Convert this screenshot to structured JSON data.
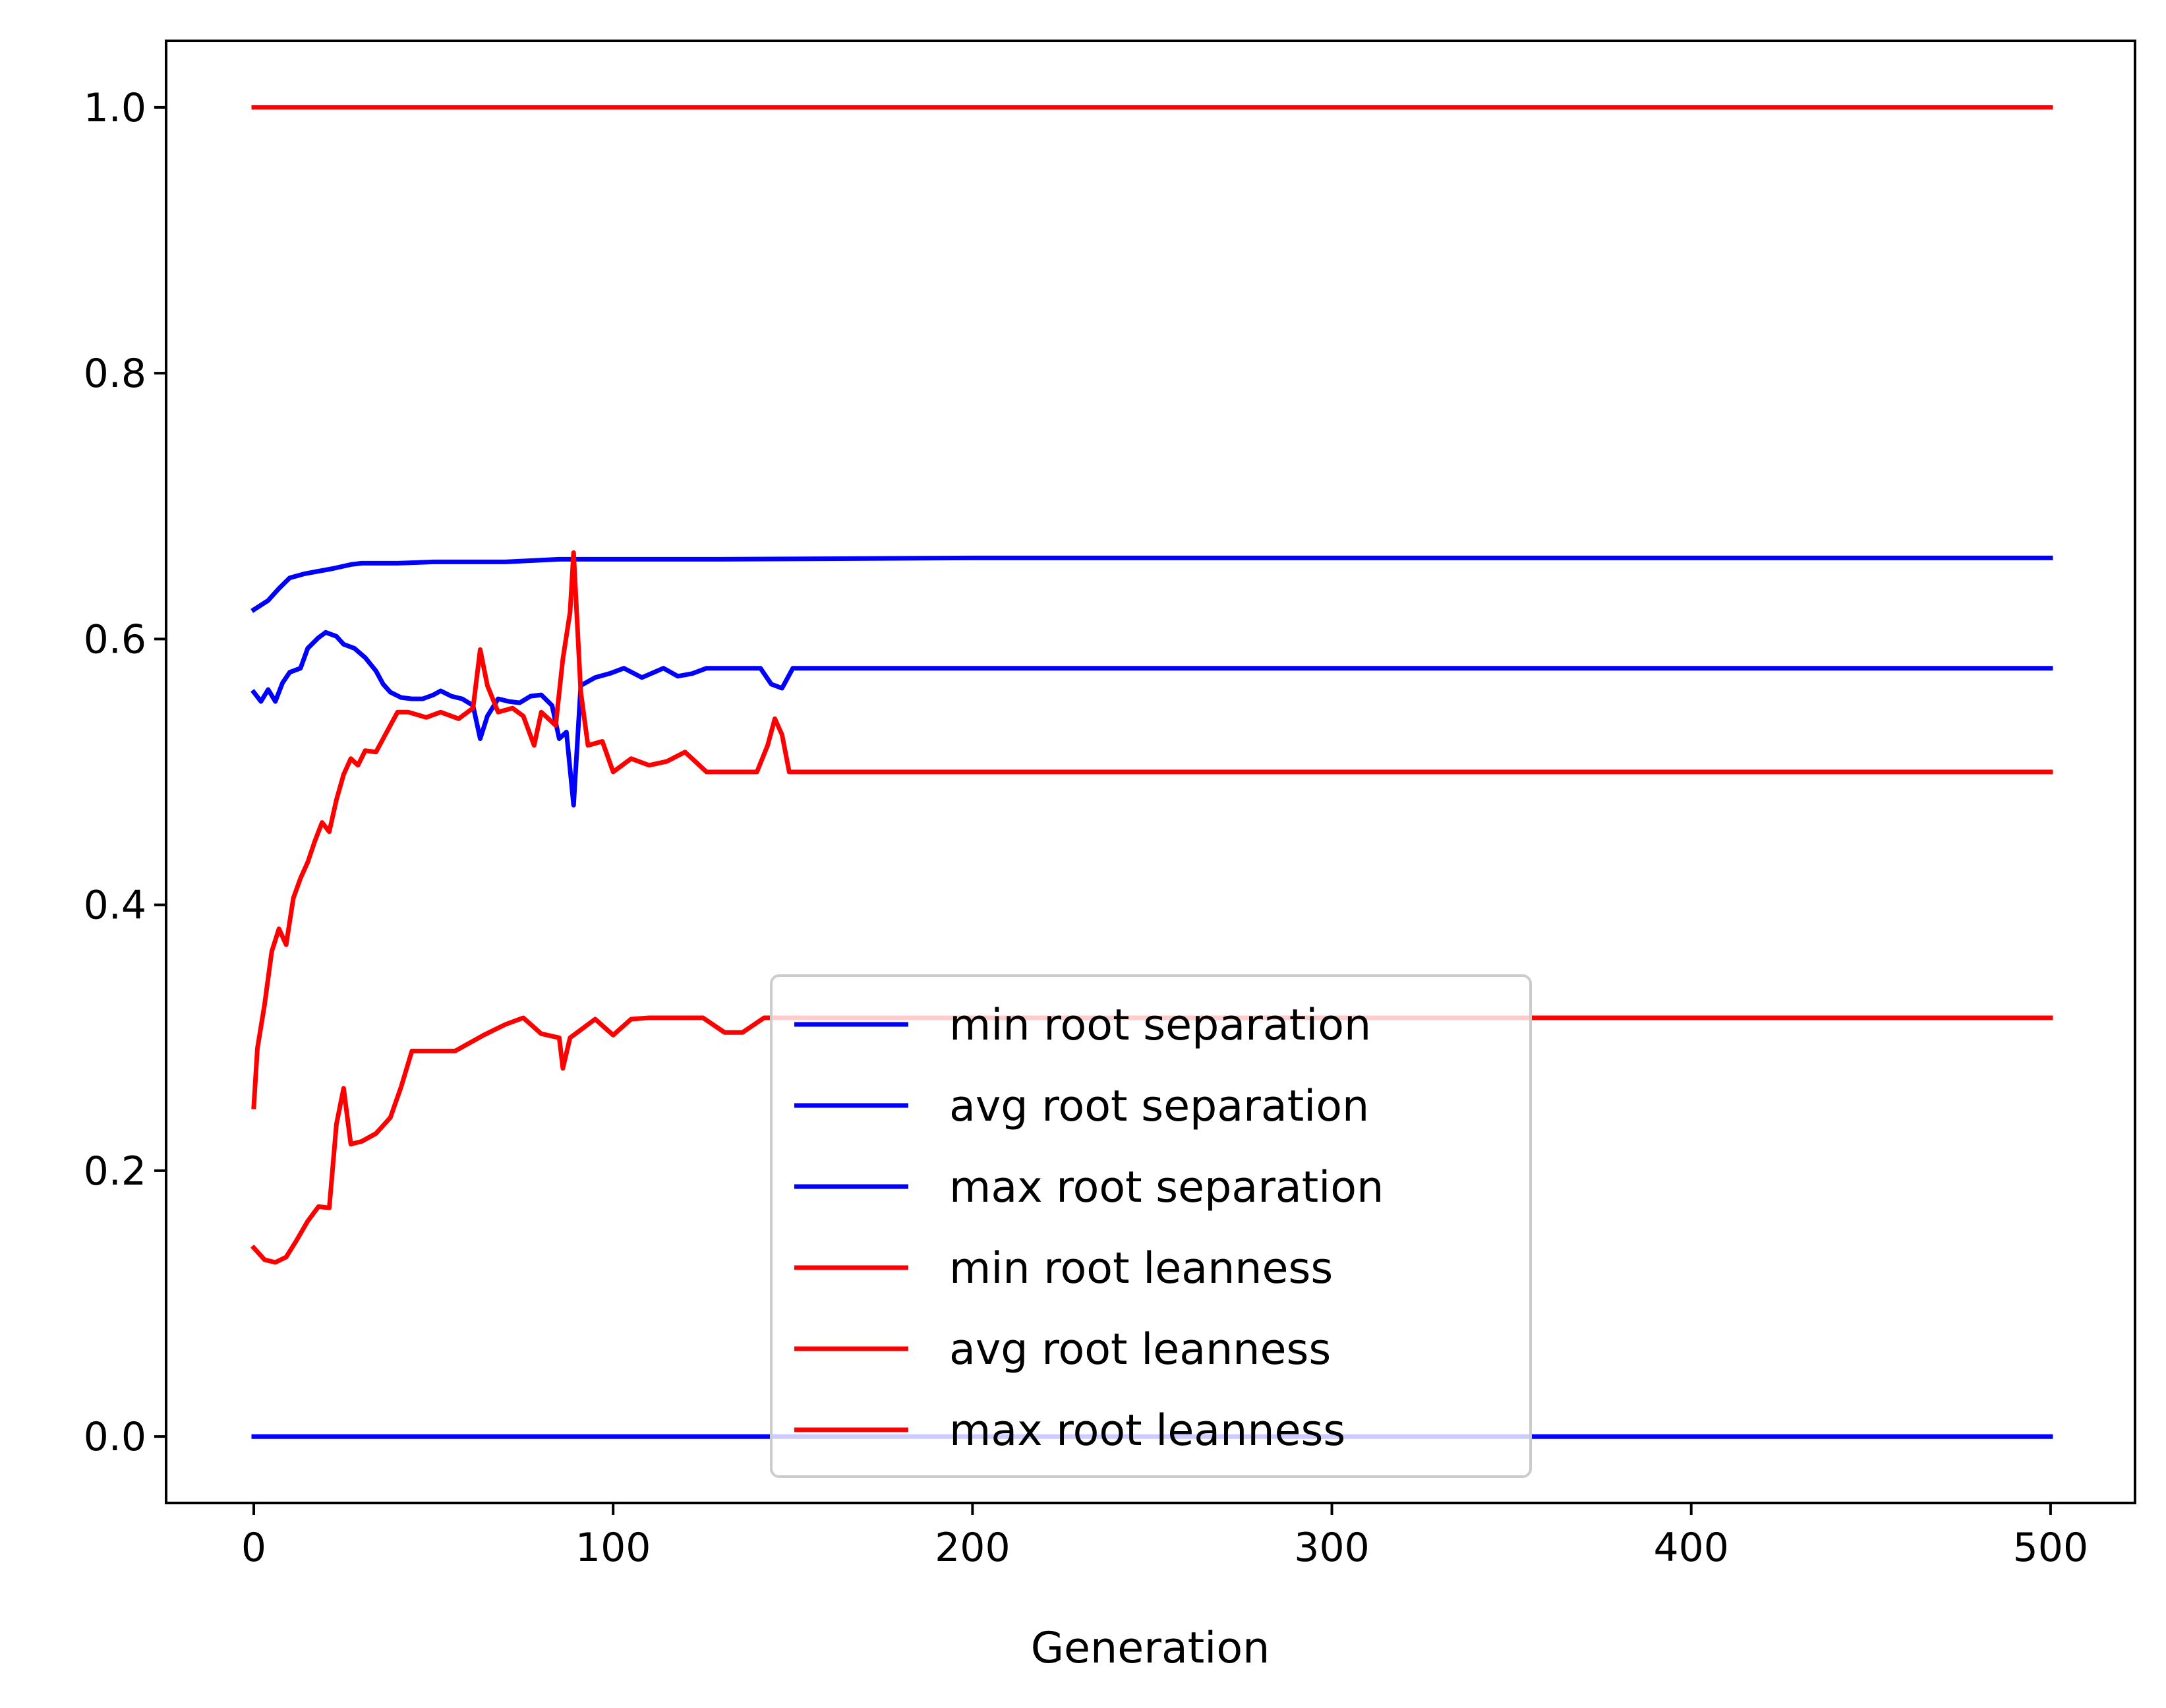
{
  "chart_data": {
    "type": "line",
    "title": "",
    "xlabel": "Generation",
    "ylabel": "",
    "xlim": [
      -24.4,
      523.5
    ],
    "ylim": [
      -0.05,
      1.05
    ],
    "xticks": [
      0,
      100,
      200,
      300,
      400,
      500
    ],
    "yticks": [
      0.0,
      0.2,
      0.4,
      0.6,
      0.8,
      1.0
    ],
    "xtick_labels": [
      "0",
      "100",
      "200",
      "300",
      "400",
      "500"
    ],
    "ytick_labels": [
      "0.0",
      "0.2",
      "0.4",
      "0.6",
      "0.8",
      "1.0"
    ],
    "grid": false,
    "legend_position": "lower center",
    "series": [
      {
        "name": "min root separation",
        "color": "#0000ff",
        "points": [
          [
            0,
            0.0
          ],
          [
            500,
            0.0
          ]
        ]
      },
      {
        "name": "avg root separation",
        "color": "#0000ff",
        "points": [
          [
            0,
            0.56
          ],
          [
            2,
            0.553
          ],
          [
            4,
            0.562
          ],
          [
            6,
            0.553
          ],
          [
            8,
            0.567
          ],
          [
            10,
            0.575
          ],
          [
            13,
            0.578
          ],
          [
            15,
            0.593
          ],
          [
            18,
            0.601
          ],
          [
            20,
            0.605
          ],
          [
            23,
            0.602
          ],
          [
            25,
            0.596
          ],
          [
            28,
            0.593
          ],
          [
            31,
            0.586
          ],
          [
            34,
            0.576
          ],
          [
            36,
            0.566
          ],
          [
            38,
            0.56
          ],
          [
            41,
            0.556
          ],
          [
            44,
            0.555
          ],
          [
            47,
            0.555
          ],
          [
            50,
            0.558
          ],
          [
            52,
            0.561
          ],
          [
            55,
            0.557
          ],
          [
            58,
            0.555
          ],
          [
            61,
            0.55
          ],
          [
            63,
            0.525
          ],
          [
            65,
            0.542
          ],
          [
            68,
            0.555
          ],
          [
            71,
            0.553
          ],
          [
            74,
            0.552
          ],
          [
            77,
            0.557
          ],
          [
            80,
            0.558
          ],
          [
            83,
            0.55
          ],
          [
            85,
            0.525
          ],
          [
            87,
            0.53
          ],
          [
            89,
            0.475
          ],
          [
            91,
            0.565
          ],
          [
            95,
            0.571
          ],
          [
            99,
            0.574
          ],
          [
            103,
            0.578
          ],
          [
            108,
            0.571
          ],
          [
            114,
            0.578
          ],
          [
            118,
            0.572
          ],
          [
            122,
            0.574
          ],
          [
            126,
            0.578
          ],
          [
            130,
            0.578
          ],
          [
            136,
            0.578
          ],
          [
            141,
            0.578
          ],
          [
            144,
            0.566
          ],
          [
            147,
            0.563
          ],
          [
            150,
            0.578
          ],
          [
            500,
            0.578
          ]
        ]
      },
      {
        "name": "max root separation",
        "color": "#0000ff",
        "points": [
          [
            0,
            0.622
          ],
          [
            4,
            0.629
          ],
          [
            7,
            0.638
          ],
          [
            10,
            0.646
          ],
          [
            14,
            0.649
          ],
          [
            18,
            0.651
          ],
          [
            22,
            0.653
          ],
          [
            27,
            0.656
          ],
          [
            30,
            0.657
          ],
          [
            40,
            0.657
          ],
          [
            50,
            0.658
          ],
          [
            70,
            0.658
          ],
          [
            85,
            0.66
          ],
          [
            100,
            0.66
          ],
          [
            130,
            0.66
          ],
          [
            200,
            0.661
          ],
          [
            500,
            0.661
          ]
        ]
      },
      {
        "name": "min root leanness",
        "color": "#ff0000",
        "points": [
          [
            0,
            0.142
          ],
          [
            3,
            0.133
          ],
          [
            6,
            0.131
          ],
          [
            9,
            0.135
          ],
          [
            12,
            0.148
          ],
          [
            15,
            0.162
          ],
          [
            18,
            0.173
          ],
          [
            21,
            0.172
          ],
          [
            23,
            0.235
          ],
          [
            25,
            0.262
          ],
          [
            27,
            0.22
          ],
          [
            30,
            0.222
          ],
          [
            34,
            0.228
          ],
          [
            38,
            0.24
          ],
          [
            41,
            0.263
          ],
          [
            44,
            0.29
          ],
          [
            50,
            0.29
          ],
          [
            56,
            0.29
          ],
          [
            60,
            0.296
          ],
          [
            64,
            0.302
          ],
          [
            70,
            0.31
          ],
          [
            75,
            0.315
          ],
          [
            80,
            0.303
          ],
          [
            85,
            0.3
          ],
          [
            86,
            0.277
          ],
          [
            88,
            0.3
          ],
          [
            95,
            0.314
          ],
          [
            100,
            0.302
          ],
          [
            105,
            0.314
          ],
          [
            110,
            0.315
          ],
          [
            125,
            0.315
          ],
          [
            131,
            0.304
          ],
          [
            136,
            0.304
          ],
          [
            142,
            0.315
          ],
          [
            150,
            0.315
          ],
          [
            500,
            0.315
          ]
        ]
      },
      {
        "name": "avg root leanness",
        "color": "#ff0000",
        "points": [
          [
            0,
            0.248
          ],
          [
            1,
            0.292
          ],
          [
            3,
            0.325
          ],
          [
            5,
            0.365
          ],
          [
            7,
            0.382
          ],
          [
            9,
            0.37
          ],
          [
            11,
            0.405
          ],
          [
            13,
            0.42
          ],
          [
            15,
            0.432
          ],
          [
            17,
            0.448
          ],
          [
            19,
            0.462
          ],
          [
            21,
            0.455
          ],
          [
            23,
            0.479
          ],
          [
            25,
            0.498
          ],
          [
            27,
            0.51
          ],
          [
            29,
            0.505
          ],
          [
            31,
            0.516
          ],
          [
            34,
            0.515
          ],
          [
            37,
            0.53
          ],
          [
            40,
            0.545
          ],
          [
            43,
            0.545
          ],
          [
            48,
            0.541
          ],
          [
            52,
            0.545
          ],
          [
            57,
            0.54
          ],
          [
            61,
            0.548
          ],
          [
            63,
            0.592
          ],
          [
            65,
            0.565
          ],
          [
            68,
            0.545
          ],
          [
            72,
            0.548
          ],
          [
            75,
            0.542
          ],
          [
            78,
            0.52
          ],
          [
            80,
            0.545
          ],
          [
            84,
            0.535
          ],
          [
            86,
            0.585
          ],
          [
            88,
            0.62
          ],
          [
            89,
            0.665
          ],
          [
            91,
            0.56
          ],
          [
            93,
            0.52
          ],
          [
            97,
            0.523
          ],
          [
            100,
            0.5
          ],
          [
            105,
            0.51
          ],
          [
            110,
            0.505
          ],
          [
            115,
            0.508
          ],
          [
            120,
            0.515
          ],
          [
            126,
            0.5
          ],
          [
            140,
            0.5
          ],
          [
            143,
            0.52
          ],
          [
            145,
            0.54
          ],
          [
            147,
            0.528
          ],
          [
            149,
            0.5
          ],
          [
            500,
            0.5
          ]
        ]
      },
      {
        "name": "max root leanness",
        "color": "#ff0000",
        "points": [
          [
            0,
            1.0
          ],
          [
            500,
            1.0
          ]
        ]
      }
    ]
  }
}
